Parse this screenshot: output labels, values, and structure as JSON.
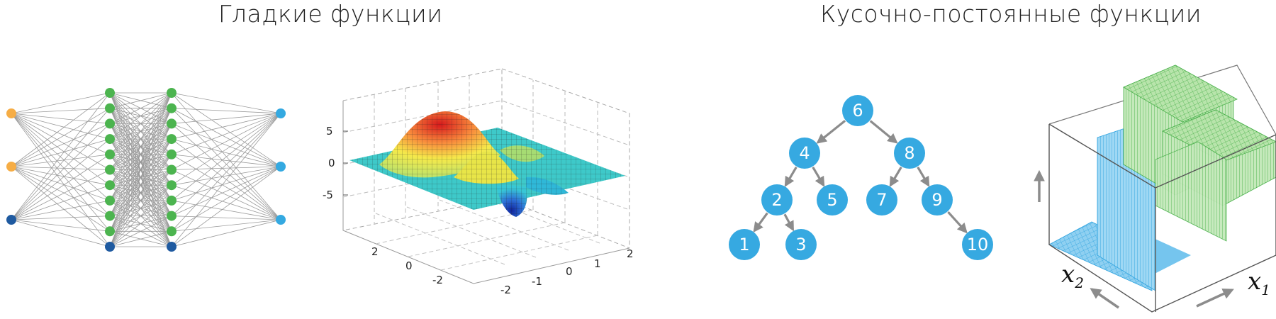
{
  "titles": {
    "left": "Гладкие функции",
    "right": "Кусочно-постоянные функции"
  },
  "colors": {
    "input_orange": "#f6ad45",
    "input_dark_blue": "#1f5aa0",
    "hidden_green": "#4cb44f",
    "output_blue": "#34a9e1",
    "tree_node": "#36a9e1",
    "edge_gray": "#8c8c8c",
    "grid_gray": "#9a9a9a",
    "box_blue": "#6ec3ee",
    "box_green": "#8ed37f"
  },
  "neural_net": {
    "layers": [
      {
        "name": "input",
        "count": 3,
        "colors": [
          "#f6ad45",
          "#f6ad45",
          "#1f5aa0"
        ]
      },
      {
        "name": "hidden-1",
        "count": 11,
        "last_color": "#1f5aa0"
      },
      {
        "name": "hidden-2",
        "count": 11,
        "last_color": "#1f5aa0"
      },
      {
        "name": "output",
        "count": 3
      }
    ]
  },
  "surface_plot": {
    "z_ticks": [
      "5",
      "0",
      "-5"
    ],
    "y_ticks": [
      "2",
      "0",
      "-2"
    ],
    "x_ticks": [
      "-2",
      "-1",
      "0",
      "1",
      "2"
    ]
  },
  "tree": {
    "nodes": [
      {
        "id": "n6",
        "label": "6"
      },
      {
        "id": "n4",
        "label": "4"
      },
      {
        "id": "n8",
        "label": "8"
      },
      {
        "id": "n2",
        "label": "2"
      },
      {
        "id": "n5",
        "label": "5"
      },
      {
        "id": "n7",
        "label": "7"
      },
      {
        "id": "n9",
        "label": "9"
      },
      {
        "id": "n1",
        "label": "1"
      },
      {
        "id": "n3",
        "label": "3"
      },
      {
        "id": "n10",
        "label": "10"
      }
    ],
    "edges": [
      [
        "n6",
        "n4"
      ],
      [
        "n6",
        "n8"
      ],
      [
        "n4",
        "n2"
      ],
      [
        "n4",
        "n5"
      ],
      [
        "n8",
        "n7"
      ],
      [
        "n8",
        "n9"
      ],
      [
        "n2",
        "n1"
      ],
      [
        "n2",
        "n3"
      ],
      [
        "n9",
        "n10"
      ]
    ]
  },
  "piecewise": {
    "x1_label": "x",
    "x1_sub": "1",
    "x2_label": "x",
    "x2_sub": "2"
  }
}
